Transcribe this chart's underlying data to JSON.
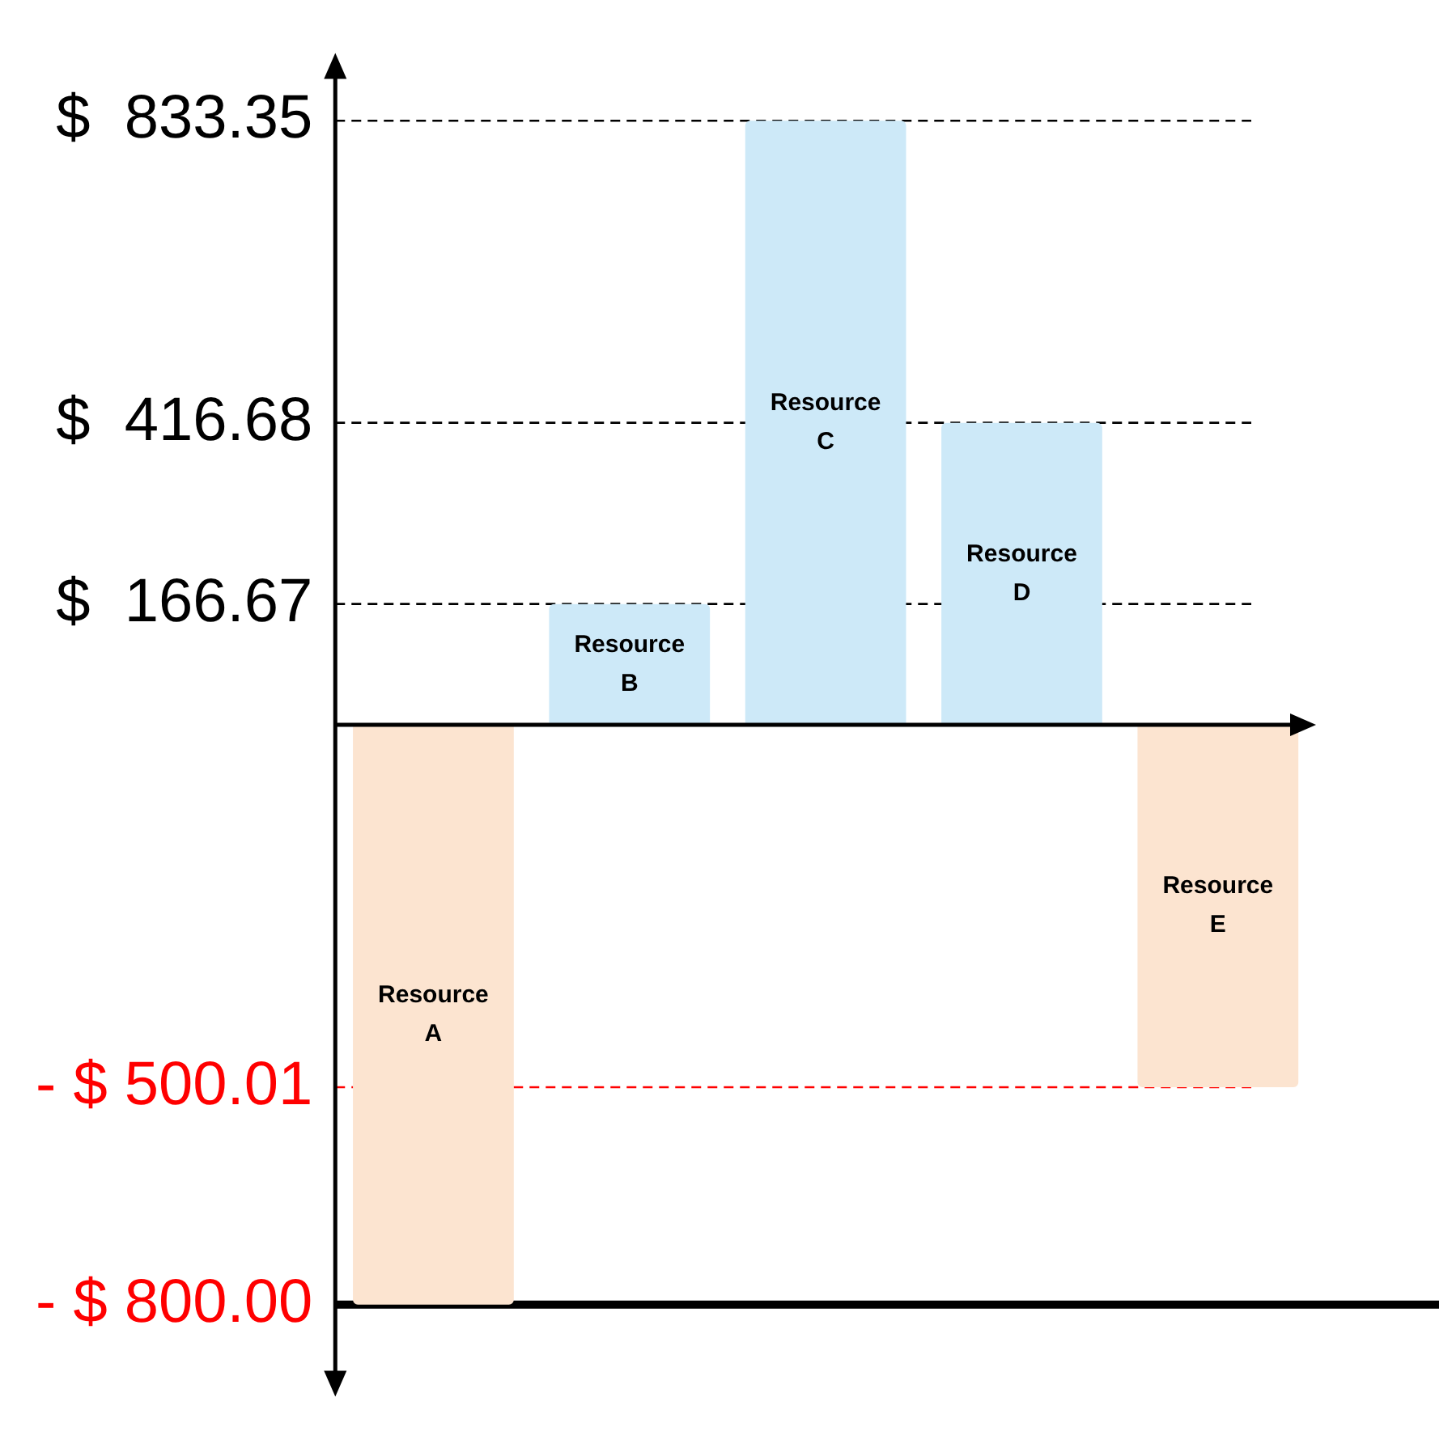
{
  "chart_data": {
    "type": "bar",
    "categories": [
      "Resource A",
      "Resource B",
      "Resource C",
      "Resource D",
      "Resource E"
    ],
    "values": [
      -800,
      166.67,
      833.35,
      416.68,
      -500.01
    ],
    "colors": [
      "#fce4d0",
      "#cde9f8",
      "#cde9f8",
      "#cde9f8",
      "#fce4d0"
    ],
    "ylim": [
      -900,
      900
    ],
    "yticks": [
      {
        "value": -800,
        "label": "- $ 800.00"
      },
      {
        "value": -500.01,
        "label": "- $ 500.01"
      },
      {
        "value": 166.67,
        "label": "$  166.67"
      },
      {
        "value": 416.68,
        "label": "$  416.68"
      },
      {
        "value": 833.35,
        "label": "$  833.35"
      }
    ],
    "ref_lines": [
      {
        "axis": "y",
        "value": 833.35,
        "color": "#000000",
        "line_style": "dashed"
      },
      {
        "axis": "y",
        "value": 416.68,
        "color": "#000000",
        "line_style": "dashed"
      },
      {
        "axis": "y",
        "value": 166.67,
        "color": "#000000",
        "line_style": "dashed"
      },
      {
        "axis": "y",
        "value": -500.01,
        "color": "#ff0000",
        "line_style": "dashed"
      },
      {
        "axis": "y",
        "value": -800,
        "color": "#000000",
        "line_style": "solid"
      }
    ],
    "grid": false,
    "legend": false,
    "tick_labels": "y"
  }
}
